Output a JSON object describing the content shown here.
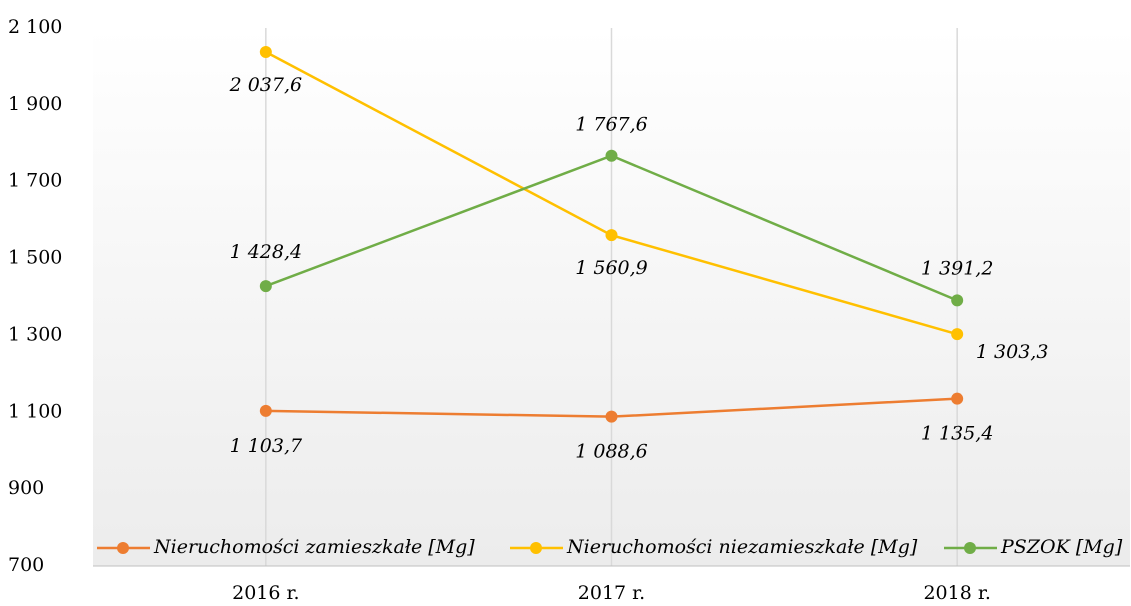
{
  "chart_data": {
    "type": "line",
    "categories": [
      "2016 r.",
      "2017 r.",
      "2018 r."
    ],
    "series": [
      {
        "name": "Nieruchomości zamieszkałe [Mg]",
        "color": "#ED7D31",
        "values": [
          1103.7,
          1088.6,
          1135.4
        ],
        "value_labels": [
          "1 103,7",
          "1 088,6",
          "1 135,4"
        ]
      },
      {
        "name": "Nieruchomości niezamieszkałe [Mg]",
        "color": "#FFC000",
        "values": [
          2037.6,
          1560.9,
          1303.3
        ],
        "value_labels": [
          "2 037,6",
          "1 560,9",
          "1 303,3"
        ]
      },
      {
        "name": "PSZOK [Mg]",
        "color": "#70AD47",
        "values": [
          1428.4,
          1767.6,
          1391.2
        ],
        "value_labels": [
          "1 428,4",
          "1 767,6",
          "1 391,2"
        ]
      }
    ],
    "ylim": [
      700,
      2100
    ],
    "yticks": [
      700,
      900,
      {
        "value": 1100,
        "label": "1 100"
      },
      {
        "value": 1300,
        "label": "1 300"
      },
      {
        "value": 1500,
        "label": "1 500"
      },
      {
        "value": 1700,
        "label": "1 700"
      },
      {
        "value": 1900,
        "label": "1 900"
      },
      {
        "value": 2100,
        "label": "2 100"
      }
    ],
    "grid": "x",
    "legend": "bottom"
  }
}
